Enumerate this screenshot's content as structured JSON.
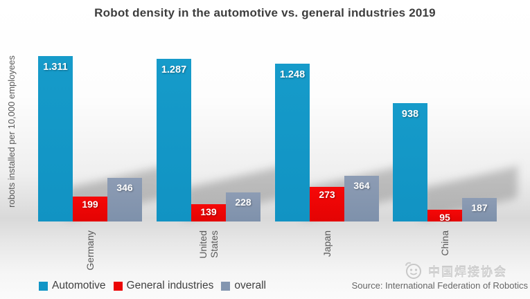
{
  "title": "Robot density in the automotive vs. general industries 2019",
  "y_axis_label": "robots installed per 10,000 employees",
  "source_text": "Source: International Federation of Robotics",
  "watermark": {
    "text": "中国焊接协会",
    "icon": "speech-bubble-face-logo"
  },
  "colors": {
    "automotive": "#1295C6",
    "general_industries": "#EC0606",
    "overall": "#8496B0",
    "title_text": "#3D3D3D",
    "axis_text": "#595959"
  },
  "legend": {
    "items": [
      {
        "label": "Automotive",
        "color": "#1295C6"
      },
      {
        "label": "General industries",
        "color": "#EC0606"
      },
      {
        "label": "overall",
        "color": "#8496B0"
      }
    ]
  },
  "chart_data": {
    "type": "bar",
    "title": "Robot density in the automotive vs. general industries 2019",
    "ylabel": "robots installed per 10,000 employees",
    "xlabel": "",
    "categories": [
      "Germany",
      "United States",
      "Japan",
      "China"
    ],
    "tick_labels": [
      "Germany",
      "United\nStates",
      "Japan",
      "China"
    ],
    "series": [
      {
        "name": "Automotive",
        "color": "#1295C6",
        "values": [
          1311,
          1287,
          1248,
          938
        ],
        "data_labels": [
          "1.311",
          "1.287",
          "1.248",
          "938"
        ]
      },
      {
        "name": "General industries",
        "color": "#EC0606",
        "values": [
          199,
          139,
          273,
          95
        ],
        "data_labels": [
          "199",
          "139",
          "273",
          "95"
        ]
      },
      {
        "name": "overall",
        "color": "#8496B0",
        "values": [
          346,
          228,
          364,
          187
        ],
        "data_labels": [
          "346",
          "228",
          "364",
          "187"
        ]
      }
    ],
    "ylim": [
      0,
      1320
    ],
    "grid": false,
    "legend_position": "bottom-left",
    "data_label_note": "thousands separated with period (European format)"
  }
}
